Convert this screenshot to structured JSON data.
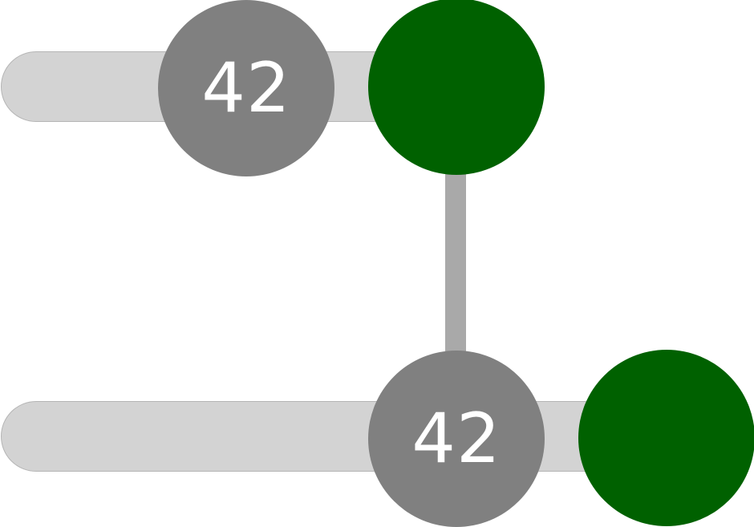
{
  "sliders": [
    {
      "value_label": "42",
      "track_color": "#d3d3d3",
      "badge_color": "#808080",
      "knob_color": "#006100"
    },
    {
      "value_label": "42",
      "track_color": "#d3d3d3",
      "badge_color": "#808080",
      "knob_color": "#006100"
    }
  ],
  "connector_color": "#a9a9a9"
}
